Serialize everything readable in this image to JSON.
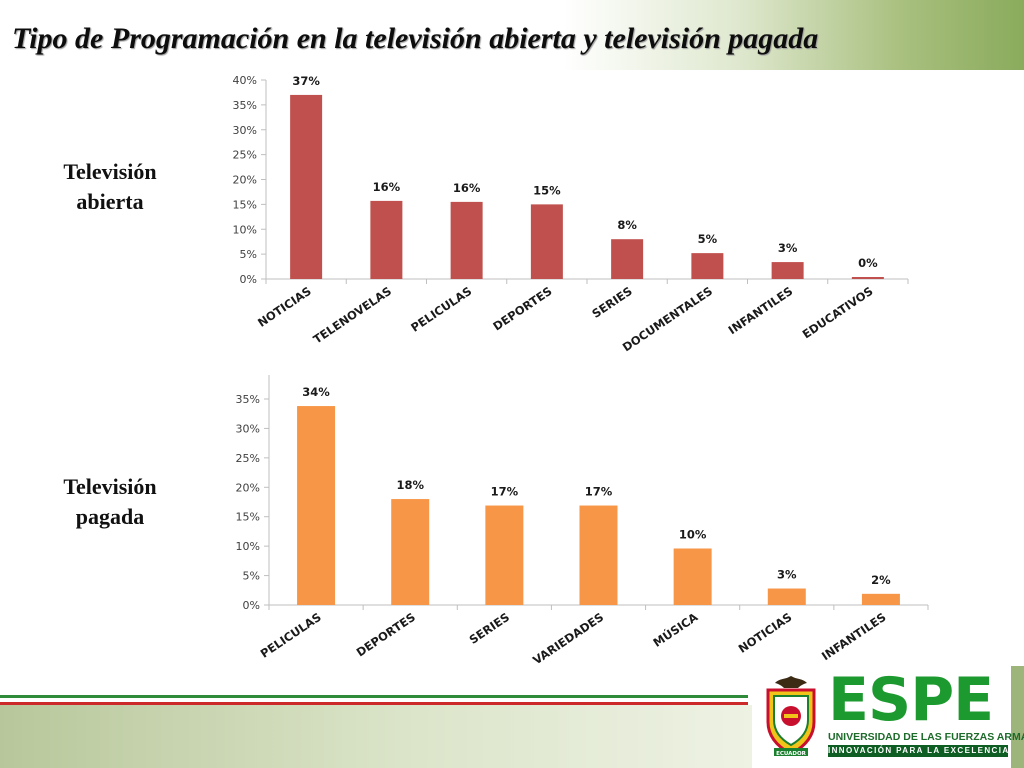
{
  "title": "Tipo de Programación en la televisión abierta y televisión pagada",
  "labels": {
    "abierta": [
      "Televisión",
      "abierta"
    ],
    "pagada": [
      "Televisión",
      "pagada"
    ]
  },
  "logo": {
    "name": "ESPE",
    "line1": "UNIVERSIDAD DE LAS FUERZAS ARMADAS",
    "line2": "INNOVACIÓN PARA LA EXCELENCIA",
    "crest_text": "ECUADOR"
  },
  "colors": {
    "abierta_bar": "#c0504d",
    "pagada_bar": "#f79646",
    "stripe_green": "#2e8b3a",
    "stripe_red": "#cc2a2a"
  },
  "chart_data": [
    {
      "type": "bar",
      "title": "",
      "categories": [
        "NOTICIAS",
        "TELENOVELAS",
        "PELICULAS",
        "DEPORTES",
        "SERIES",
        "DOCUMENTALES",
        "INFANTILES",
        "EDUCATIVOS"
      ],
      "values": [
        37,
        16,
        16,
        15,
        8,
        5,
        3,
        0
      ],
      "data_labels": [
        "37%",
        "16%",
        "16%",
        "15%",
        "8%",
        "5%",
        "3%",
        "0%"
      ],
      "bar_values": [
        37,
        15.7,
        15.5,
        15,
        8,
        5.2,
        3.4,
        0.4
      ],
      "ylim": [
        0,
        40
      ],
      "yticks": [
        0,
        5,
        10,
        15,
        20,
        25,
        30,
        35,
        40
      ],
      "ytick_labels": [
        "0%",
        "5%",
        "10%",
        "15%",
        "20%",
        "25%",
        "30%",
        "35%",
        "40%"
      ],
      "grid": false,
      "legend": "none"
    },
    {
      "type": "bar",
      "title": "",
      "categories": [
        "PELICULAS",
        "DEPORTES",
        "SERIES",
        "VARIEDADES",
        "MÚSICA",
        "NOTICIAS",
        "INFANTILES"
      ],
      "values": [
        34,
        18,
        17,
        17,
        10,
        3,
        2
      ],
      "data_labels": [
        "34%",
        "18%",
        "17%",
        "17%",
        "10%",
        "3%",
        "2%"
      ],
      "bar_values": [
        33.8,
        18,
        16.9,
        16.9,
        9.6,
        2.8,
        1.9
      ],
      "ylim": [
        0,
        35
      ],
      "yticks": [
        0,
        5,
        10,
        15,
        20,
        25,
        30,
        35
      ],
      "ytick_labels": [
        "0%",
        "5%",
        "10%",
        "15%",
        "20%",
        "25%",
        "30%",
        "35%"
      ],
      "grid": false,
      "legend": "none"
    }
  ]
}
